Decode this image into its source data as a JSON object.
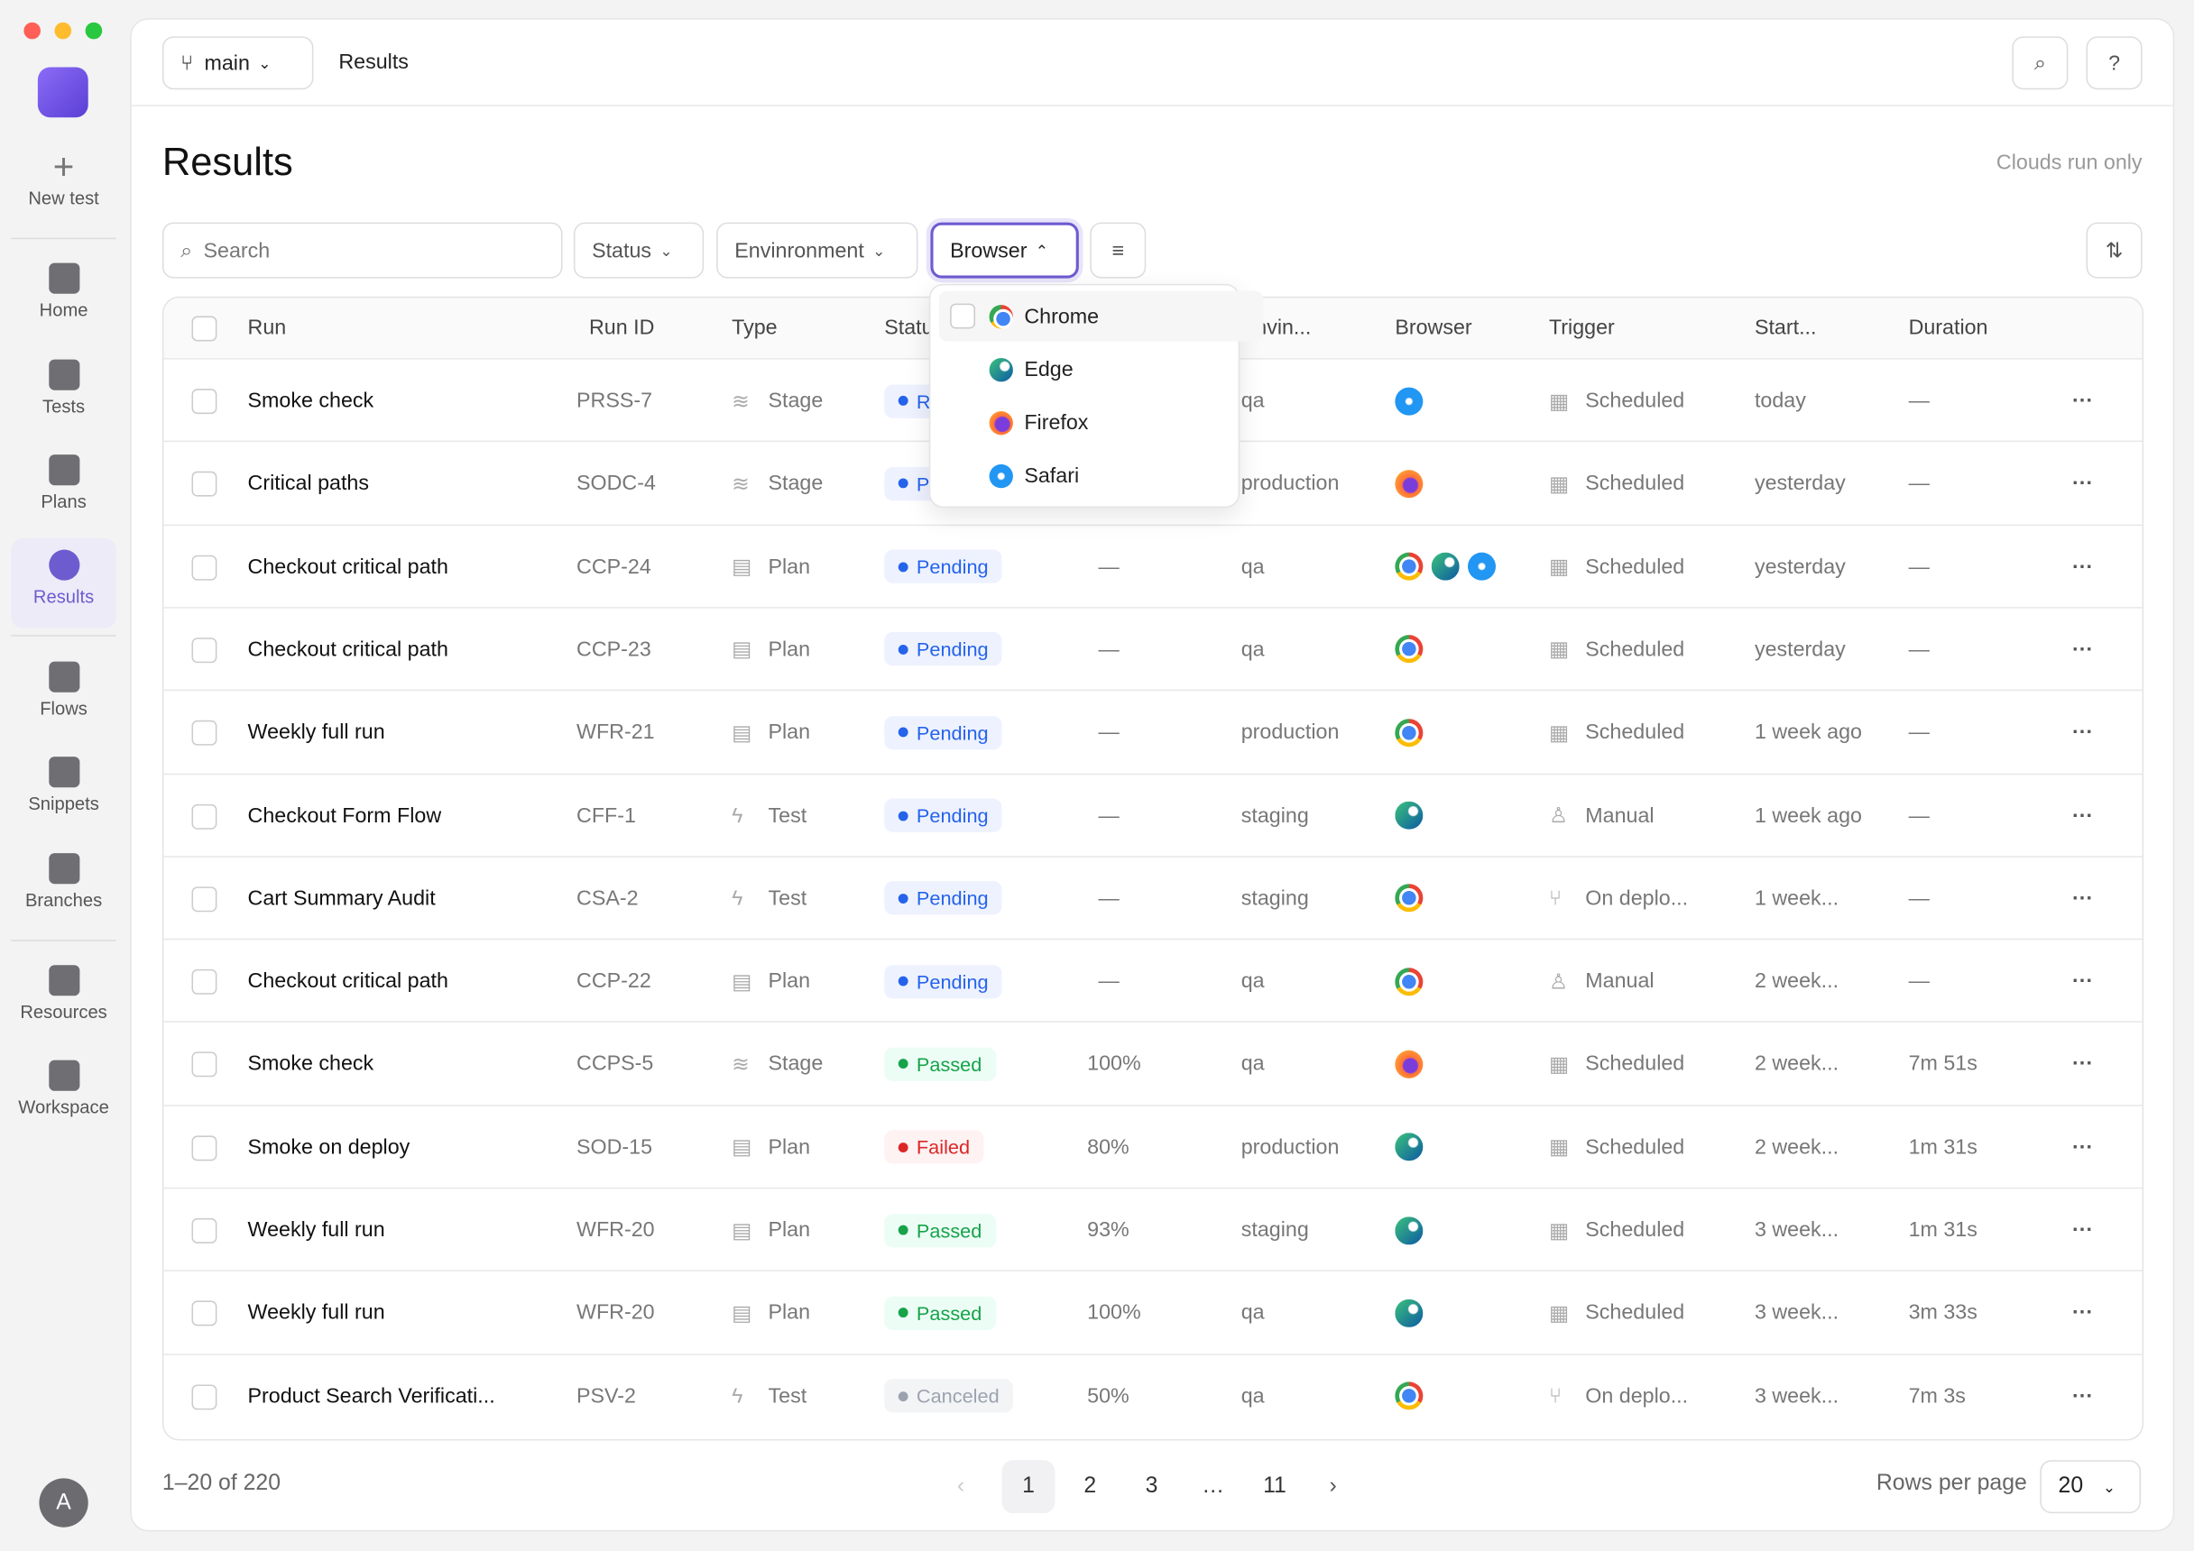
{
  "sidebar": {
    "items": [
      "New test",
      "Home",
      "Tests",
      "Plans",
      "Results",
      "Flows",
      "Snippets",
      "Branches",
      "Resources",
      "Workspace"
    ],
    "active": 4,
    "avatar": "A"
  },
  "header": {
    "branch": "main",
    "breadcrumb": "Results"
  },
  "page": {
    "title": "Results",
    "note": "Clouds run only"
  },
  "filters": {
    "search": "Search",
    "status": "Status",
    "environment": "Envinronment",
    "browser": "Browser"
  },
  "dropdown": {
    "options": [
      "Chrome",
      "Edge",
      "Firefox",
      "Safari"
    ]
  },
  "table": {
    "columns": [
      "Run",
      "Run ID",
      "Type",
      "Status",
      "",
      "Envin...",
      "Browser",
      "Trigger",
      "Start...",
      "Duration"
    ],
    "rows": [
      [
        "Smoke check",
        "PRSS-7",
        "Stage",
        "Running",
        "",
        "qa",
        [
          "Safari"
        ],
        "Scheduled",
        "today",
        "—"
      ],
      [
        "Critical paths",
        "SODC-4",
        "Stage",
        "Pending",
        "",
        "production",
        [
          "Firefox"
        ],
        "Scheduled",
        "yesterday",
        "—"
      ],
      [
        "Checkout critical path",
        "CCP-24",
        "Plan",
        "Pending",
        "—",
        "qa",
        [
          "Chrome",
          "Edge",
          "Safari"
        ],
        "Scheduled",
        "yesterday",
        "—"
      ],
      [
        "Checkout critical path",
        "CCP-23",
        "Plan",
        "Pending",
        "—",
        "qa",
        [
          "Chrome"
        ],
        "Scheduled",
        "yesterday",
        "—"
      ],
      [
        "Weekly full run",
        "WFR-21",
        "Plan",
        "Pending",
        "—",
        "production",
        [
          "Chrome"
        ],
        "Scheduled",
        "1 week ago",
        "—"
      ],
      [
        "Checkout Form Flow",
        "CFF-1",
        "Test",
        "Pending",
        "—",
        "staging",
        [
          "Edge"
        ],
        "Manual",
        "1 week ago",
        "—"
      ],
      [
        "Cart Summary Audit",
        "CSA-2",
        "Test",
        "Pending",
        "—",
        "staging",
        [
          "Chrome"
        ],
        "On deplo...",
        "1 week...",
        "—"
      ],
      [
        "Checkout critical path",
        "CCP-22",
        "Plan",
        "Pending",
        "—",
        "qa",
        [
          "Chrome"
        ],
        "Manual",
        "2 week...",
        "—"
      ],
      [
        "Smoke check",
        "CCPS-5",
        "Stage",
        "Passed",
        "100%",
        "qa",
        [
          "Firefox"
        ],
        "Scheduled",
        "2 week...",
        "7m 51s"
      ],
      [
        "Smoke on deploy",
        "SOD-15",
        "Plan",
        "Failed",
        "80%",
        "production",
        [
          "Edge"
        ],
        "Scheduled",
        "2 week...",
        "1m 31s"
      ],
      [
        "Weekly full run",
        "WFR-20",
        "Plan",
        "Passed",
        "93%",
        "staging",
        [
          "Edge"
        ],
        "Scheduled",
        "3 week...",
        "1m 31s"
      ],
      [
        "Weekly full run",
        "WFR-20",
        "Plan",
        "Passed",
        "100%",
        "qa",
        [
          "Edge"
        ],
        "Scheduled",
        "3 week...",
        "3m 33s"
      ],
      [
        "Product Search Verificati...",
        "PSV-2",
        "Test",
        "Canceled",
        "50%",
        "qa",
        [
          "Chrome"
        ],
        "On deplo...",
        "3 week...",
        "7m 3s"
      ]
    ]
  },
  "footer": {
    "range": "1–20 of 220",
    "pages": [
      "1",
      "2",
      "3",
      "…",
      "11"
    ],
    "rows_label": "Rows per page",
    "rows_value": "20"
  }
}
